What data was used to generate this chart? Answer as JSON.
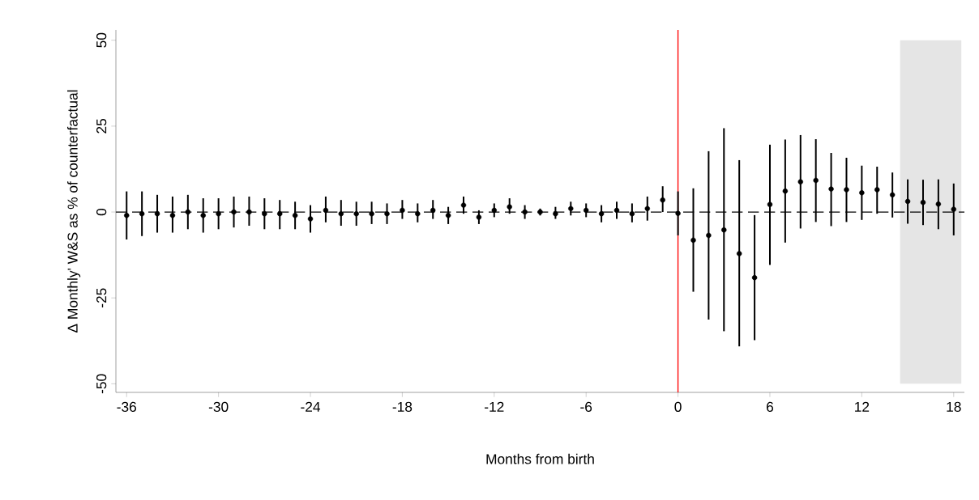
{
  "chart_data": {
    "type": "scatter",
    "xlabel": "Months from birth",
    "ylabel": "Δ Monthly' W&S as % of counterfactual",
    "x": [
      -36,
      -35,
      -34,
      -33,
      -32,
      -31,
      -30,
      -29,
      -28,
      -27,
      -26,
      -25,
      -24,
      -23,
      -22,
      -21,
      -20,
      -19,
      -18,
      -17,
      -16,
      -15,
      -14,
      -13,
      -12,
      -11,
      -10,
      -9,
      -8,
      -7,
      -6,
      -5,
      -4,
      -3,
      -2,
      -1,
      0,
      1,
      2,
      3,
      4,
      5,
      6,
      7,
      8,
      9,
      10,
      11,
      12,
      13,
      14,
      15,
      16,
      17,
      18
    ],
    "series": [
      {
        "color": "#000000",
        "values": [
          -1,
          -0.5,
          -0.5,
          -1,
          0,
          -1,
          -0.5,
          0,
          0,
          -0.5,
          -0.5,
          -1,
          -2,
          0.5,
          -0.5,
          -0.5,
          -0.5,
          -0.5,
          0.5,
          -0.5,
          0.5,
          -1,
          2,
          -1.5,
          0.5,
          1.5,
          0,
          0,
          -0.5,
          1,
          0.5,
          -0.5,
          0.5,
          -0.5,
          1,
          3.5,
          -0.4,
          -8.2,
          -6.8,
          -5.2,
          -12.1,
          -19.1,
          2.2,
          6.1,
          8.8,
          9.2,
          6.7,
          6.5,
          5.6,
          6.5,
          5,
          3.1,
          2.8,
          2.3,
          0.8
        ],
        "errors": [
          [
            -8,
            6
          ],
          [
            -7,
            6
          ],
          [
            -6,
            5
          ],
          [
            -6,
            4.5
          ],
          [
            -5,
            5
          ],
          [
            -6,
            4
          ],
          [
            -5,
            4
          ],
          [
            -4.5,
            4.5
          ],
          [
            -4,
            4.5
          ],
          [
            -5,
            4
          ],
          [
            -5,
            3.5
          ],
          [
            -5,
            3
          ],
          [
            -6,
            2
          ],
          [
            -3,
            4.5
          ],
          [
            -4,
            3.5
          ],
          [
            -4,
            3
          ],
          [
            -3.5,
            3
          ],
          [
            -3.5,
            2.5
          ],
          [
            -2,
            3.5
          ],
          [
            -3,
            2.5
          ],
          [
            -2,
            3.5
          ],
          [
            -3.5,
            1.5
          ],
          [
            -0.5,
            4.5
          ],
          [
            -3.5,
            0.5
          ],
          [
            -1.5,
            2.5
          ],
          [
            -0.5,
            4
          ],
          [
            -2,
            2
          ],
          [
            -1,
            1
          ],
          [
            -2,
            1.5
          ],
          [
            -1,
            3
          ],
          [
            -1.5,
            2.5
          ],
          [
            -3,
            2
          ],
          [
            -2,
            3
          ],
          [
            -3,
            2.5
          ],
          [
            -2.5,
            4.5
          ],
          [
            0,
            7.5
          ],
          [
            -6.8,
            6
          ],
          [
            -23.2,
            6.9
          ],
          [
            -31.3,
            17.7
          ],
          [
            -34.7,
            24.4
          ],
          [
            -39.1,
            15.1
          ],
          [
            -37.3,
            -0.9
          ],
          [
            -15.4,
            19.6
          ],
          [
            -8.9,
            21.1
          ],
          [
            -4.8,
            22.4
          ],
          [
            -2.9,
            21.2
          ],
          [
            -4.1,
            17.2
          ],
          [
            -2.9,
            15.8
          ],
          [
            -2.3,
            13.5
          ],
          [
            -0.5,
            13.2
          ],
          [
            -1.6,
            11.5
          ],
          [
            -3.4,
            9.5
          ],
          [
            -3.8,
            9.4
          ],
          [
            -5,
            9.5
          ],
          [
            -6.8,
            8.3
          ]
        ]
      }
    ],
    "marker": "circle",
    "xlim": [
      -36.7,
      18.7
    ],
    "ylim": [
      -52.5,
      53
    ],
    "xticks": [
      -36,
      -30,
      -24,
      -18,
      -12,
      -6,
      0,
      6,
      12,
      18
    ],
    "yticks": [
      -50,
      -25,
      0,
      25,
      50
    ],
    "ref_lines": [
      {
        "axis": "x",
        "value": 0,
        "color": "#ff0000",
        "line_style": "solid"
      },
      {
        "axis": "y",
        "value": 0,
        "color": "#000000",
        "line_style": "dashed"
      }
    ],
    "bands": [
      {
        "axis": "x",
        "from": 14.5,
        "to": 18.5,
        "color": "#e5e5e5"
      }
    ]
  }
}
